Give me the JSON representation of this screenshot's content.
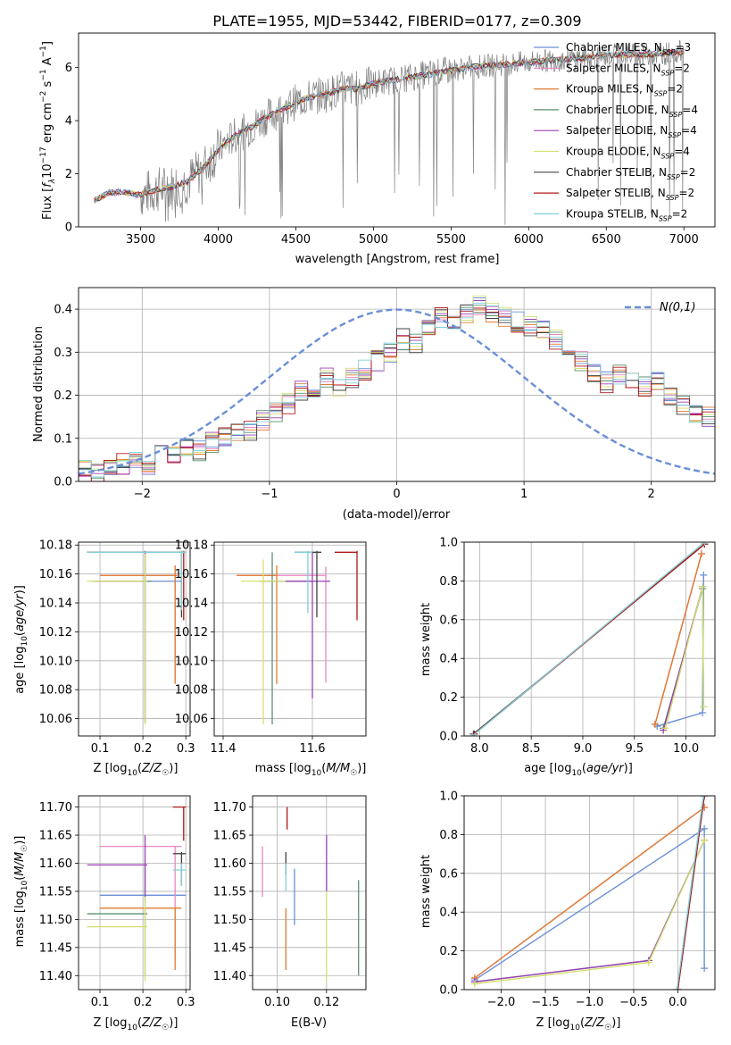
{
  "colors": {
    "Chabrier MILES": "#6a8fd8",
    "Salpeter MILES": "#e886c0",
    "Kroupa MILES": "#e07b30",
    "Chabrier ELODIE": "#5a9070",
    "Salpeter ELODIE": "#9a40b8",
    "Kroupa ELODIE": "#d4e070",
    "Chabrier STELIB": "#404040",
    "Salpeter STELIB": "#b01818",
    "Kroupa STELIB": "#80d0d8",
    "data": "#808080",
    "normal": "#6a8fd8",
    "grid": "#b0b0b0"
  },
  "chart_data": [
    {
      "type": "line",
      "title": "PLATE=1955, MJD=53442, FIBERID=0177, z=0.309",
      "xlabel": "wavelength [Angstrom, rest frame]",
      "ylabel": "Flux [f_λ 10^-17 erg cm^-2 s^-1 A^-1]",
      "xlim": [
        3100,
        7200
      ],
      "ylim": [
        0,
        7.3
      ],
      "xticks": [
        3500,
        4000,
        4500,
        5000,
        5500,
        6000,
        6500,
        7000
      ],
      "yticks": [
        0,
        2,
        4,
        6
      ],
      "grid": false,
      "legend_position": "top-right",
      "legend": [
        {
          "model": "Chabrier MILES",
          "nssp": "3"
        },
        {
          "model": "Salpeter MILES",
          "nssp": "2"
        },
        {
          "model": "Kroupa MILES",
          "nssp": "2"
        },
        {
          "model": "Chabrier ELODIE",
          "nssp": "4"
        },
        {
          "model": "Salpeter ELODIE",
          "nssp": "4"
        },
        {
          "model": "Kroupa ELODIE",
          "nssp": "4"
        },
        {
          "model": "Chabrier STELIB",
          "nssp": "2"
        },
        {
          "model": "Salpeter STELIB",
          "nssp": "2"
        },
        {
          "model": "Kroupa STELIB",
          "nssp": "2"
        }
      ],
      "continuum": {
        "x": [
          3200,
          3300,
          3400,
          3500,
          3600,
          3700,
          3800,
          3900,
          4000,
          4100,
          4200,
          4300,
          4400,
          4500,
          4600,
          4700,
          4800,
          4900,
          5000,
          5200,
          5400,
          5600,
          5800,
          6000,
          6200,
          6400,
          6600,
          6800,
          7000
        ],
        "y": [
          1.0,
          1.3,
          1.3,
          1.2,
          1.4,
          1.5,
          1.7,
          2.2,
          2.9,
          3.4,
          3.7,
          4.1,
          4.4,
          4.7,
          4.9,
          5.0,
          5.2,
          5.2,
          5.4,
          5.6,
          5.8,
          6.0,
          6.1,
          6.2,
          6.3,
          6.4,
          6.5,
          6.5,
          6.6
        ]
      }
    },
    {
      "type": "bar",
      "xlabel": "(data-model)/error",
      "ylabel": "Normed distribution",
      "xlim": [
        -2.5,
        2.5
      ],
      "ylim": [
        0,
        0.45
      ],
      "xticks": [
        -2,
        -1,
        0,
        1,
        2
      ],
      "yticks": [
        0.0,
        0.1,
        0.2,
        0.3,
        0.4
      ],
      "grid": true,
      "legend_position": "top-right",
      "legend_label": "N(0,1)",
      "bin_width": 0.1,
      "bin_start": -2.5,
      "values": [
        0.03,
        0.02,
        0.03,
        0.04,
        0.05,
        0.04,
        0.07,
        0.06,
        0.08,
        0.07,
        0.09,
        0.1,
        0.11,
        0.12,
        0.14,
        0.16,
        0.18,
        0.21,
        0.2,
        0.24,
        0.22,
        0.24,
        0.26,
        0.28,
        0.3,
        0.33,
        0.32,
        0.35,
        0.38,
        0.36,
        0.39,
        0.41,
        0.39,
        0.38,
        0.37,
        0.36,
        0.35,
        0.33,
        0.31,
        0.28,
        0.25,
        0.23,
        0.25,
        0.24,
        0.22,
        0.23,
        0.2,
        0.18,
        0.16,
        0.15,
        0.12,
        0.11,
        0.1,
        0.08,
        0.09,
        0.07,
        0.07,
        0.08,
        0.06,
        0.06
      ]
    },
    {
      "type": "scatter",
      "xlabel": "Z [log10(Z/Z☉)]",
      "ylabel": "age [log10(age/yr)]",
      "xlim": [
        0.05,
        0.31
      ],
      "ylim": [
        10.048,
        10.182
      ],
      "xticks": [
        0.1,
        0.2,
        0.3
      ],
      "yticks": [
        10.06,
        10.08,
        10.1,
        10.12,
        10.14,
        10.16,
        10.18
      ],
      "grid": true,
      "bars": [
        {
          "model": "Chabrier MILES",
          "x": 0.21,
          "y": 10.155,
          "xerr": [
            0.08,
            0.29
          ],
          "yerr": [
            10.155,
            10.155
          ]
        },
        {
          "model": "Salpeter MILES",
          "x": 0.275,
          "y": 10.159,
          "xerr": [
            0.1,
            0.28
          ],
          "yerr": [
            10.085,
            10.165
          ]
        },
        {
          "model": "Kroupa MILES",
          "x": 0.275,
          "y": 10.159,
          "xerr": [
            0.1,
            0.28
          ],
          "yerr": [
            10.084,
            10.166
          ]
        },
        {
          "model": "Chabrier ELODIE",
          "x": 0.205,
          "y": 10.155,
          "xerr": [
            0.09,
            0.22
          ],
          "yerr": [
            10.057,
            10.175
          ]
        },
        {
          "model": "Salpeter ELODIE",
          "x": 0.205,
          "y": 10.155,
          "xerr": [
            0.09,
            0.21
          ],
          "yerr": [
            10.058,
            10.176
          ]
        },
        {
          "model": "Kroupa ELODIE",
          "x": 0.205,
          "y": 10.155,
          "xerr": [
            0.07,
            0.21
          ],
          "yerr": [
            10.056,
            10.174
          ]
        },
        {
          "model": "Chabrier STELIB",
          "x": 0.29,
          "y": 10.175,
          "xerr": [
            0.07,
            0.3
          ],
          "yerr": [
            10.13,
            10.176
          ]
        },
        {
          "model": "Salpeter STELIB",
          "x": 0.295,
          "y": 10.175,
          "xerr": [
            0.07,
            0.3
          ],
          "yerr": [
            10.128,
            10.176
          ]
        },
        {
          "model": "Kroupa STELIB",
          "x": 0.29,
          "y": 10.175,
          "xerr": [
            0.07,
            0.3
          ],
          "yerr": [
            10.135,
            10.176
          ]
        }
      ]
    },
    {
      "type": "scatter",
      "xlabel": "mass [log10(M/M☉)]",
      "ylabel": "",
      "xlim": [
        11.38,
        11.72
      ],
      "ylim": [
        10.048,
        10.182
      ],
      "xticks": [
        11.4,
        11.6
      ],
      "yticks": [
        10.06,
        10.08,
        10.1,
        10.12,
        10.14,
        10.16,
        10.18
      ],
      "grid": true,
      "bars": [
        {
          "model": "Chabrier MILES",
          "x": 11.54,
          "y": 10.155,
          "xerr": [
            11.49,
            11.59
          ],
          "yerr": [
            10.155,
            10.155
          ]
        },
        {
          "model": "Salpeter MILES",
          "x": 11.63,
          "y": 10.159,
          "xerr": [
            11.43,
            11.63
          ],
          "yerr": [
            10.085,
            10.165
          ]
        },
        {
          "model": "Kroupa MILES",
          "x": 11.52,
          "y": 10.159,
          "xerr": [
            11.43,
            11.52
          ],
          "yerr": [
            10.084,
            10.166
          ]
        },
        {
          "model": "Chabrier ELODIE",
          "x": 11.51,
          "y": 10.155,
          "xerr": [
            11.48,
            11.6
          ],
          "yerr": [
            10.056,
            10.175
          ]
        },
        {
          "model": "Salpeter ELODIE",
          "x": 11.6,
          "y": 10.155,
          "xerr": [
            11.54,
            11.64
          ],
          "yerr": [
            10.074,
            10.175
          ]
        },
        {
          "model": "Kroupa ELODIE",
          "x": 11.49,
          "y": 10.155,
          "xerr": [
            11.44,
            11.54
          ],
          "yerr": [
            10.056,
            10.17
          ]
        },
        {
          "model": "Chabrier STELIB",
          "x": 11.61,
          "y": 10.175,
          "xerr": [
            11.56,
            11.62
          ],
          "yerr": [
            10.13,
            10.176
          ]
        },
        {
          "model": "Salpeter STELIB",
          "x": 11.7,
          "y": 10.175,
          "xerr": [
            11.65,
            11.7
          ],
          "yerr": [
            10.128,
            10.176
          ]
        },
        {
          "model": "Kroupa STELIB",
          "x": 11.59,
          "y": 10.175,
          "xerr": [
            11.56,
            11.6
          ],
          "yerr": [
            10.133,
            10.176
          ]
        }
      ]
    },
    {
      "type": "line",
      "xlabel": "age [log10(age/yr)]",
      "ylabel": "mass weight",
      "xlim": [
        7.85,
        10.28
      ],
      "ylim": [
        0,
        1.0
      ],
      "xticks": [
        8.0,
        8.5,
        9.0,
        9.5,
        10.0
      ],
      "yticks": [
        0.0,
        0.2,
        0.4,
        0.6,
        0.8,
        1.0
      ],
      "grid": true,
      "series": [
        {
          "model": "Chabrier MILES",
          "x": [
            9.72,
            10.16,
            10.17
          ],
          "y": [
            0.05,
            0.12,
            0.83
          ]
        },
        {
          "model": "Salpeter MILES",
          "x": [
            9.7,
            10.15
          ],
          "y": [
            0.06,
            0.94
          ]
        },
        {
          "model": "Kroupa MILES",
          "x": [
            9.7,
            10.15
          ],
          "y": [
            0.06,
            0.94
          ]
        },
        {
          "model": "Chabrier ELODIE",
          "x": [
            9.78,
            10.16,
            10.17
          ],
          "y": [
            0.04,
            0.76,
            0.15
          ]
        },
        {
          "model": "Salpeter ELODIE",
          "x": [
            9.78,
            10.16
          ],
          "y": [
            0.03,
            0.77
          ]
        },
        {
          "model": "Kroupa ELODIE",
          "x": [
            9.8,
            10.16,
            10.17
          ],
          "y": [
            0.04,
            0.77,
            0.15
          ]
        },
        {
          "model": "Chabrier STELIB",
          "x": [
            7.94,
            10.18
          ],
          "y": [
            0.01,
            0.99
          ]
        },
        {
          "model": "Salpeter STELIB",
          "x": [
            7.95,
            10.18
          ],
          "y": [
            0.01,
            0.99
          ]
        },
        {
          "model": "Kroupa STELIB",
          "x": [
            7.93,
            10.18
          ],
          "y": [
            0.0,
            1.0
          ]
        }
      ]
    },
    {
      "type": "scatter",
      "xlabel": "Z [log10(Z/Z☉)]",
      "ylabel": "mass [log10(M/M☉)]",
      "xlim": [
        0.05,
        0.31
      ],
      "ylim": [
        11.375,
        11.72
      ],
      "xticks": [
        0.1,
        0.2,
        0.3
      ],
      "yticks": [
        11.4,
        11.45,
        11.5,
        11.55,
        11.6,
        11.65,
        11.7
      ],
      "grid": true,
      "bars": [
        {
          "model": "Chabrier MILES",
          "x": 0.21,
          "y": 11.543,
          "xerr": [
            0.1,
            0.3
          ],
          "yerr": [
            11.543,
            11.543
          ]
        },
        {
          "model": "Salpeter MILES",
          "x": 0.275,
          "y": 11.63,
          "xerr": [
            0.1,
            0.29
          ],
          "yerr": [
            11.43,
            11.63
          ]
        },
        {
          "model": "Kroupa MILES",
          "x": 0.275,
          "y": 11.52,
          "xerr": [
            0.1,
            0.29
          ],
          "yerr": [
            11.41,
            11.52
          ]
        },
        {
          "model": "Chabrier ELODIE",
          "x": 0.205,
          "y": 11.51,
          "xerr": [
            0.07,
            0.21
          ],
          "yerr": [
            11.4,
            11.6
          ]
        },
        {
          "model": "Salpeter ELODIE",
          "x": 0.205,
          "y": 11.597,
          "xerr": [
            0.07,
            0.21
          ],
          "yerr": [
            11.54,
            11.65
          ]
        },
        {
          "model": "Kroupa ELODIE",
          "x": 0.205,
          "y": 11.487,
          "xerr": [
            0.07,
            0.21
          ],
          "yerr": [
            11.39,
            11.54
          ]
        },
        {
          "model": "Chabrier STELIB",
          "x": 0.29,
          "y": 11.617,
          "xerr": [
            0.27,
            0.3
          ],
          "yerr": [
            11.56,
            11.62
          ]
        },
        {
          "model": "Salpeter STELIB",
          "x": 0.295,
          "y": 11.7,
          "xerr": [
            0.27,
            0.3
          ],
          "yerr": [
            11.64,
            11.7
          ]
        },
        {
          "model": "Kroupa STELIB",
          "x": 0.29,
          "y": 11.588,
          "xerr": [
            0.27,
            0.3
          ],
          "yerr": [
            11.56,
            11.6
          ]
        }
      ]
    },
    {
      "type": "scatter",
      "xlabel": "E(B-V)",
      "ylabel": "",
      "xlim": [
        0.09,
        0.136
      ],
      "ylim": [
        11.375,
        11.72
      ],
      "xticks": [
        0.1,
        0.12
      ],
      "yticks": [
        11.4,
        11.45,
        11.5,
        11.55,
        11.6,
        11.65,
        11.7
      ],
      "grid": true,
      "bars": [
        {
          "model": "Chabrier MILES",
          "x": 0.107,
          "yerr": [
            11.49,
            11.59
          ]
        },
        {
          "model": "Salpeter MILES",
          "x": 0.094,
          "yerr": [
            11.54,
            11.63
          ]
        },
        {
          "model": "Kroupa MILES",
          "x": 0.1035,
          "yerr": [
            11.41,
            11.52
          ]
        },
        {
          "model": "Chabrier ELODIE",
          "x": 0.133,
          "yerr": [
            11.4,
            11.57
          ]
        },
        {
          "model": "Salpeter ELODIE",
          "x": 0.12,
          "yerr": [
            11.55,
            11.65
          ]
        },
        {
          "model": "Kroupa ELODIE",
          "x": 0.12,
          "yerr": [
            11.39,
            11.55
          ]
        },
        {
          "model": "Chabrier STELIB",
          "x": 0.1035,
          "yerr": [
            11.58,
            11.62
          ]
        },
        {
          "model": "Salpeter STELIB",
          "x": 0.104,
          "yerr": [
            11.66,
            11.7
          ]
        },
        {
          "model": "Kroupa STELIB",
          "x": 0.1035,
          "yerr": [
            11.55,
            11.6
          ]
        }
      ]
    },
    {
      "type": "line",
      "xlabel": "Z [log10(Z/Z☉)]",
      "ylabel": "mass weight",
      "xlim": [
        -2.42,
        0.42
      ],
      "ylim": [
        0,
        1.0
      ],
      "xticks": [
        -2.0,
        -1.5,
        -1.0,
        -0.5,
        0.0
      ],
      "yticks": [
        0.0,
        0.2,
        0.4,
        0.6,
        0.8,
        1.0
      ],
      "grid": true,
      "series": [
        {
          "model": "Chabrier MILES",
          "x": [
            -2.3,
            0.3,
            0.3
          ],
          "y": [
            0.05,
            0.83,
            0.11
          ]
        },
        {
          "model": "Salpeter MILES",
          "x": [
            -2.3,
            0.3
          ],
          "y": [
            0.06,
            0.94
          ]
        },
        {
          "model": "Kroupa MILES",
          "x": [
            -2.3,
            0.3
          ],
          "y": [
            0.06,
            0.94
          ]
        },
        {
          "model": "Chabrier ELODIE",
          "x": [
            -2.3,
            -0.33,
            0.3
          ],
          "y": [
            0.04,
            0.15,
            0.77
          ]
        },
        {
          "model": "Salpeter ELODIE",
          "x": [
            -2.3,
            -0.33,
            0.3
          ],
          "y": [
            0.04,
            0.15,
            0.77
          ]
        },
        {
          "model": "Kroupa ELODIE",
          "x": [
            -2.3,
            -0.33,
            0.3
          ],
          "y": [
            0.03,
            0.14,
            0.77
          ]
        },
        {
          "model": "Chabrier STELIB",
          "x": [
            0.0,
            0.3
          ],
          "y": [
            0.0,
            1.0
          ]
        },
        {
          "model": "Salpeter STELIB",
          "x": [
            0.0,
            0.3
          ],
          "y": [
            0.0,
            1.0
          ]
        },
        {
          "model": "Kroupa STELIB",
          "x": [
            -0.01,
            0.29
          ],
          "y": [
            0.0,
            1.0
          ]
        }
      ]
    }
  ]
}
